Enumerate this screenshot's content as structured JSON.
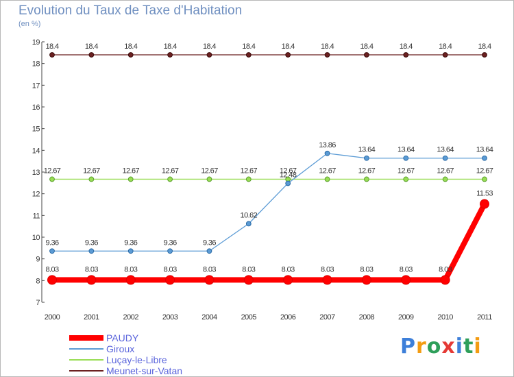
{
  "colors": {
    "series": [
      "#ff0000",
      "#5b9bd5",
      "#99dd55",
      "#6b2020"
    ],
    "marker_stroke": [
      "#dd0000",
      "#2a6aa5",
      "#5aa02c",
      "#3a0a0a"
    ],
    "axis_text": "#333333",
    "title": "#6f8fc0",
    "legend_text": "#5a64dc"
  },
  "logo": {
    "text": "Proxiti",
    "letters": [
      "P",
      "r",
      "o",
      "x",
      "i",
      "t",
      "i"
    ],
    "colors": [
      "#3d7fd9",
      "#f39c12",
      "#2e9f5a",
      "#e53935",
      "#3d7fd9",
      "#2e9f5a",
      "#f39c12"
    ]
  },
  "chart_data": {
    "type": "line",
    "title": "Evolution du Taux de Taxe d'Habitation",
    "subtitle": "(en %)",
    "xlabel": "",
    "ylabel": "",
    "x": [
      "2000",
      "2001",
      "2002",
      "2003",
      "2004",
      "2005",
      "2006",
      "2007",
      "2008",
      "2009",
      "2010",
      "2011"
    ],
    "ylim": [
      7,
      19
    ],
    "yticks": [
      7,
      8,
      9,
      10,
      11,
      12,
      13,
      14,
      15,
      16,
      17,
      18,
      19
    ],
    "grid": false,
    "legend_position": "bottom-left",
    "series": [
      {
        "name": "PAUDY",
        "values": [
          8.03,
          8.03,
          8.03,
          8.03,
          8.03,
          8.03,
          8.03,
          8.03,
          8.03,
          8.03,
          8.03,
          11.53
        ],
        "labels": [
          "8.03",
          "8.03",
          "8.03",
          "8.03",
          "8.03",
          "8.03",
          "8.03",
          "8.03",
          "8.03",
          "8.03",
          "8.03",
          "11.53"
        ]
      },
      {
        "name": "Giroux",
        "values": [
          9.36,
          9.36,
          9.36,
          9.36,
          9.36,
          10.62,
          12.48,
          13.86,
          13.64,
          13.64,
          13.64,
          13.64
        ],
        "labels": [
          "9.36",
          "9.36",
          "9.36",
          "9.36",
          "9.36",
          "10.62",
          "12.48",
          "13.86",
          "13.64",
          "13.64",
          "13.64",
          "13.64"
        ]
      },
      {
        "name": "Luçay-le-Libre",
        "values": [
          12.67,
          12.67,
          12.67,
          12.67,
          12.67,
          12.67,
          12.67,
          12.67,
          12.67,
          12.67,
          12.67,
          12.67
        ],
        "labels": [
          "12.67",
          "12.67",
          "12.67",
          "12.67",
          "12.67",
          "12.67",
          "12.67",
          "12.67",
          "12.67",
          "12.67",
          "12.67",
          "12.67"
        ]
      },
      {
        "name": "Meunet-sur-Vatan",
        "values": [
          18.4,
          18.4,
          18.4,
          18.4,
          18.4,
          18.4,
          18.4,
          18.4,
          18.4,
          18.4,
          18.4,
          18.4
        ],
        "labels": [
          "18.4",
          "18.4",
          "18.4",
          "18.4",
          "18.4",
          "18.4",
          "18.4",
          "18.4",
          "18.4",
          "18.4",
          "18.4",
          "18.4"
        ]
      }
    ]
  }
}
